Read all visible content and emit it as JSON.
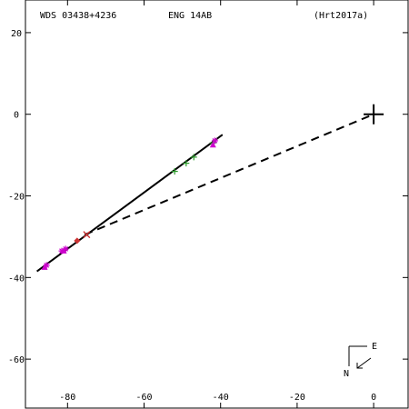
{
  "header": {
    "system": "WDS 03438+4236",
    "discoverer": "ENG  14AB",
    "reference": "(Hrt2017a)"
  },
  "compass": {
    "east_label": "E",
    "north_label": "N"
  },
  "chart_data": {
    "type": "scatter",
    "xlim": [
      -91,
      9
    ],
    "ylim": [
      -72,
      28
    ],
    "x_ticks": [
      -80,
      -60,
      -40,
      -20,
      0
    ],
    "y_ticks": [
      20,
      0,
      -20,
      -40,
      -60
    ],
    "x_tick_labels": [
      "-80",
      "-60",
      "-40",
      "-20",
      "0"
    ],
    "y_tick_labels": [
      "20",
      "0",
      "-20",
      "-40",
      "-60"
    ],
    "grid": false,
    "origin": {
      "x": 0,
      "y": 0,
      "marker": "large-plus",
      "color": "#000000"
    },
    "orbit_line": {
      "points": [
        {
          "x": -88.0,
          "y": -38.5
        },
        {
          "x": -39.5,
          "y": -5.0
        }
      ],
      "style": "solid",
      "color": "#000000"
    },
    "connector": {
      "points": [
        {
          "x": -75.5,
          "y": -29.5
        },
        {
          "x": 0,
          "y": 0
        }
      ],
      "style": "dashed",
      "color": "#000000"
    },
    "series": [
      {
        "marker": "plus",
        "color": "#2e9e2e",
        "points": [
          {
            "x": -52.0,
            "y": -14.0
          },
          {
            "x": -49.0,
            "y": -12.0
          },
          {
            "x": -47.0,
            "y": -10.5
          },
          {
            "x": -42.0,
            "y": -7.0
          }
        ]
      },
      {
        "marker": "asterisk",
        "color": "#cc00cc",
        "points": [
          {
            "x": -41.5,
            "y": -6.5
          },
          {
            "x": -80.5,
            "y": -33.0
          },
          {
            "x": -81.5,
            "y": -33.5
          },
          {
            "x": -85.5,
            "y": -37.0
          }
        ]
      },
      {
        "marker": "triangle",
        "color": "#cc00cc",
        "points": [
          {
            "x": -42.0,
            "y": -7.5
          },
          {
            "x": -81.0,
            "y": -33.5
          },
          {
            "x": -86.0,
            "y": -37.5
          }
        ]
      },
      {
        "marker": "diamond",
        "color": "#cc3333",
        "points": [
          {
            "x": -77.5,
            "y": -31.0
          }
        ]
      },
      {
        "marker": "x",
        "color": "#cc3333",
        "points": [
          {
            "x": -75.0,
            "y": -29.5
          }
        ]
      }
    ]
  }
}
